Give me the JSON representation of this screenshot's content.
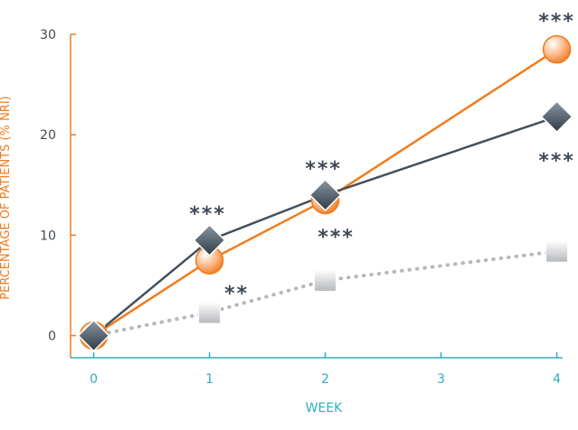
{
  "colors": {
    "orange": "#f07c1e",
    "slate": "#44505c",
    "gray": "#b5b8bc",
    "axis_x": "#2bb0c0",
    "axis_y": "#f07c1e",
    "tick_text": "#404a55"
  },
  "chart_data": {
    "type": "line",
    "title": "",
    "xlabel": "WEEK",
    "ylabel": "PERCENTAGE OF PATIENTS (% NRI)",
    "x": [
      0,
      1,
      2,
      3,
      4
    ],
    "xlim": [
      -0.2,
      4.05
    ],
    "ylim": [
      -2.2,
      30
    ],
    "yticks": [
      0,
      10,
      20,
      30
    ],
    "grid": false,
    "series": [
      {
        "marker": "circle",
        "color": "#f07c1e",
        "line_style": "solid",
        "x": [
          0,
          1,
          2,
          4
        ],
        "values": [
          0,
          7.5,
          13.5,
          28.5
        ],
        "significance": [
          "",
          "**",
          "***",
          "***"
        ]
      },
      {
        "marker": "diamond",
        "color": "#44505c",
        "line_style": "solid",
        "x": [
          0,
          1,
          2,
          4
        ],
        "values": [
          0,
          9.5,
          14,
          21.8
        ],
        "significance": [
          "",
          "***",
          "***",
          "***"
        ]
      },
      {
        "marker": "square",
        "color": "#b5b8bc",
        "line_style": "dotted",
        "x": [
          0,
          1,
          2,
          4
        ],
        "values": [
          0,
          2.3,
          5.5,
          8.4
        ],
        "significance": [
          "",
          "",
          "",
          ""
        ]
      }
    ]
  }
}
